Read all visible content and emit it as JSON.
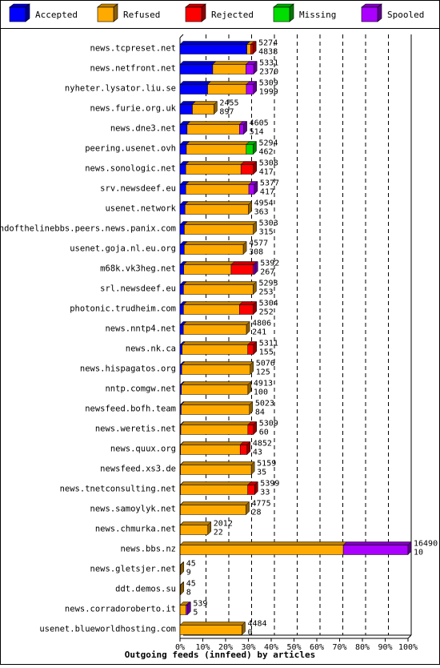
{
  "chart_data": {
    "type": "bar",
    "orientation": "horizontal",
    "stacked": true,
    "title": "Outgoing feeds (innfeed) by articles",
    "x_ticks": [
      "0%",
      "10%",
      "20%",
      "30%",
      "40%",
      "50%",
      "60%",
      "70%",
      "80%",
      "90%",
      "100%"
    ],
    "xlim": [
      0,
      16490
    ],
    "grid": "vertical dashed",
    "legend_position": "top",
    "series": [
      {
        "name": "Accepted",
        "color": "#0000ff"
      },
      {
        "name": "Refused",
        "color": "#ffaa00"
      },
      {
        "name": "Rejected",
        "color": "#ff0000"
      },
      {
        "name": "Missing",
        "color": "#00dd00"
      },
      {
        "name": "Spooled",
        "color": "#aa00ff"
      }
    ],
    "rows": [
      {
        "name": "news.tcpreset.net",
        "offered": "5274",
        "accepted": "4838",
        "seg": [
          4838,
          280,
          156,
          0,
          0
        ]
      },
      {
        "name": "news.netfront.net",
        "offered": "5331",
        "accepted": "2370",
        "seg": [
          2370,
          2400,
          0,
          0,
          561
        ]
      },
      {
        "name": "nyheter.lysator.liu.se",
        "offered": "5309",
        "accepted": "1999",
        "seg": [
          1999,
          2800,
          0,
          0,
          510
        ]
      },
      {
        "name": "news.furie.org.uk",
        "offered": "2455",
        "accepted": "897",
        "seg": [
          897,
          1558,
          0,
          0,
          0
        ]
      },
      {
        "name": "news.dne3.net",
        "offered": "4605",
        "accepted": "514",
        "seg": [
          514,
          3791,
          0,
          0,
          300
        ]
      },
      {
        "name": "peering.usenet.ovh",
        "offered": "5294",
        "accepted": "462",
        "seg": [
          462,
          4332,
          0,
          500,
          0
        ]
      },
      {
        "name": "news.sonologic.net",
        "offered": "5308",
        "accepted": "417",
        "seg": [
          417,
          3991,
          900,
          0,
          0
        ]
      },
      {
        "name": "srv.newsdeef.eu",
        "offered": "5377",
        "accepted": "417",
        "seg": [
          417,
          4560,
          0,
          0,
          400
        ]
      },
      {
        "name": "usenet.network",
        "offered": "4954",
        "accepted": "363",
        "seg": [
          363,
          4591,
          0,
          0,
          0
        ]
      },
      {
        "name": "endofthelinebbs.peers.news.panix.com",
        "offered": "5303",
        "accepted": "315",
        "seg": [
          315,
          4988,
          0,
          0,
          0
        ]
      },
      {
        "name": "usenet.goja.nl.eu.org",
        "offered": "4577",
        "accepted": "308",
        "seg": [
          308,
          4269,
          0,
          0,
          0
        ]
      },
      {
        "name": "m68k.vk3heg.net",
        "offered": "5392",
        "accepted": "267",
        "seg": [
          267,
          3433,
          1600,
          0,
          92
        ]
      },
      {
        "name": "srl.newsdeef.eu",
        "offered": "5293",
        "accepted": "253",
        "seg": [
          253,
          5040,
          0,
          0,
          0
        ]
      },
      {
        "name": "photonic.trudheim.com",
        "offered": "5304",
        "accepted": "252",
        "seg": [
          252,
          4048,
          1004,
          0,
          0
        ]
      },
      {
        "name": "news.nntp4.net",
        "offered": "4806",
        "accepted": "241",
        "seg": [
          241,
          4565,
          0,
          0,
          0
        ]
      },
      {
        "name": "news.nk.ca",
        "offered": "5311",
        "accepted": "155",
        "seg": [
          155,
          4745,
          411,
          0,
          0
        ]
      },
      {
        "name": "news.hispagatos.org",
        "offered": "5076",
        "accepted": "125",
        "seg": [
          125,
          4951,
          0,
          0,
          0
        ]
      },
      {
        "name": "nntp.comgw.net",
        "offered": "4913",
        "accepted": "100",
        "seg": [
          100,
          4813,
          0,
          0,
          0
        ]
      },
      {
        "name": "newsfeed.bofh.team",
        "offered": "5023",
        "accepted": "84",
        "seg": [
          84,
          4939,
          0,
          0,
          0
        ]
      },
      {
        "name": "news.weretis.net",
        "offered": "5309",
        "accepted": "60",
        "seg": [
          60,
          4849,
          400,
          0,
          0
        ]
      },
      {
        "name": "news.quux.org",
        "offered": "4852",
        "accepted": "43",
        "seg": [
          43,
          4309,
          500,
          0,
          0
        ]
      },
      {
        "name": "newsfeed.xs3.de",
        "offered": "5159",
        "accepted": "35",
        "seg": [
          35,
          5124,
          0,
          0,
          0
        ]
      },
      {
        "name": "news.tnetconsulting.net",
        "offered": "5399",
        "accepted": "33",
        "seg": [
          33,
          4866,
          500,
          0,
          0
        ]
      },
      {
        "name": "news.samoylyk.net",
        "offered": "4775",
        "accepted": "28",
        "seg": [
          28,
          4747,
          0,
          0,
          0
        ]
      },
      {
        "name": "news.chmurka.net",
        "offered": "2012",
        "accepted": "22",
        "seg": [
          22,
          1990,
          0,
          0,
          0
        ]
      },
      {
        "name": "news.bbs.nz",
        "offered": "16490",
        "accepted": "10",
        "seg": [
          10,
          11800,
          0,
          0,
          4680
        ]
      },
      {
        "name": "news.gletsjer.net",
        "offered": "45",
        "accepted": "9",
        "seg": [
          9,
          36,
          0,
          0,
          0
        ]
      },
      {
        "name": "ddt.demos.su",
        "offered": "45",
        "accepted": "8",
        "seg": [
          8,
          37,
          0,
          0,
          0
        ]
      },
      {
        "name": "news.corradoroberto.it",
        "offered": "539",
        "accepted": "5",
        "seg": [
          5,
          434,
          0,
          0,
          100
        ]
      },
      {
        "name": "usenet.blueworldhosting.com",
        "offered": "4484",
        "accepted": "0",
        "seg": [
          0,
          4484,
          0,
          0,
          0
        ]
      }
    ]
  }
}
